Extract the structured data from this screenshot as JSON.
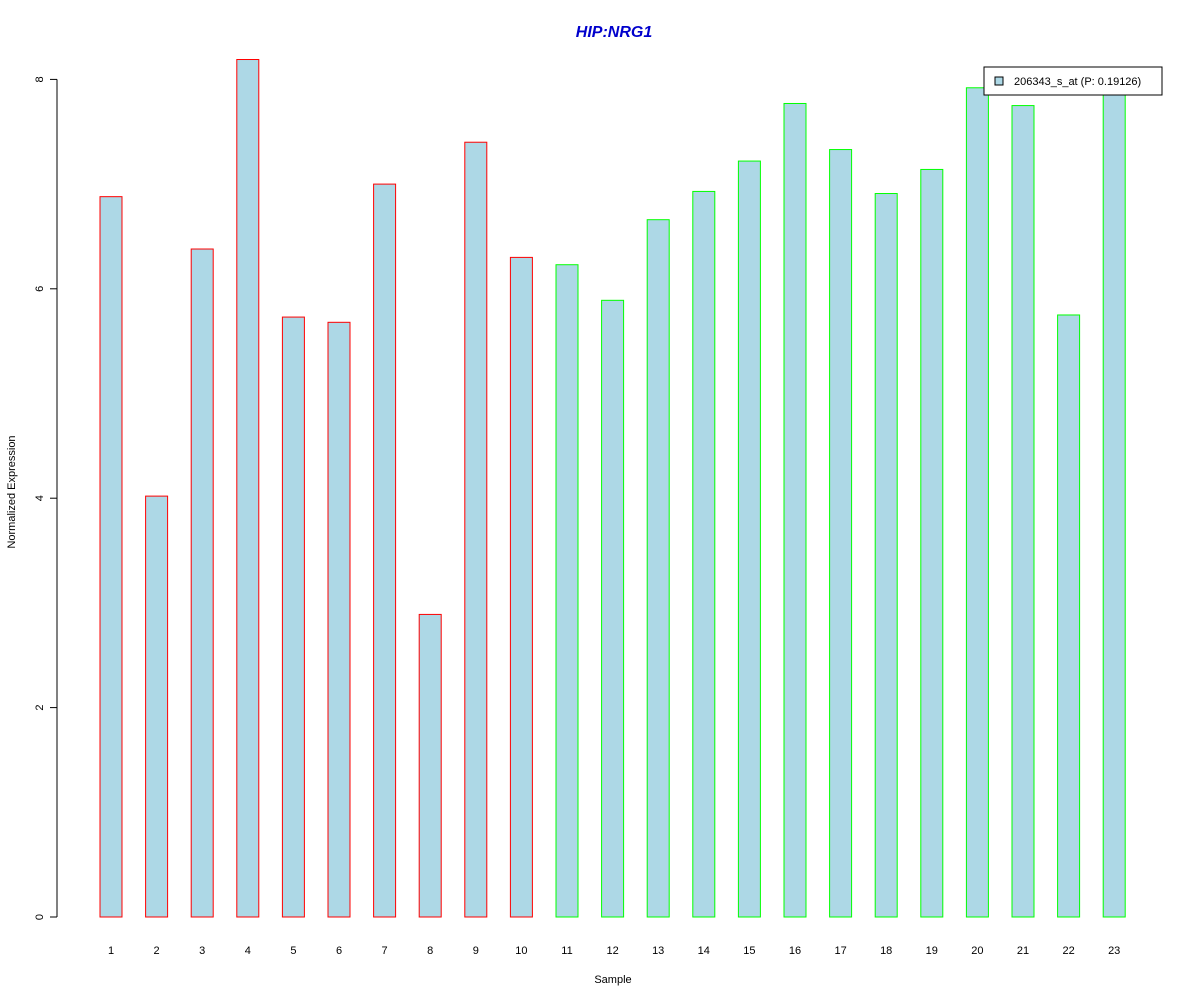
{
  "chart_data": {
    "type": "bar",
    "title": "HIP:NRG1",
    "xlabel": "Sample",
    "ylabel": "Normalized Expression",
    "categories": [
      "1",
      "2",
      "3",
      "4",
      "5",
      "6",
      "7",
      "8",
      "9",
      "10",
      "11",
      "12",
      "13",
      "14",
      "15",
      "16",
      "17",
      "18",
      "19",
      "20",
      "21",
      "22",
      "23"
    ],
    "series": [
      {
        "name": "206343_s_at (P: 0.19126)",
        "values": [
          6.88,
          4.02,
          6.38,
          8.19,
          5.73,
          5.68,
          7.0,
          2.89,
          7.4,
          6.3,
          6.23,
          5.89,
          6.66,
          6.93,
          7.22,
          7.77,
          7.33,
          6.91,
          7.14,
          7.92,
          7.75,
          5.75,
          7.9
        ]
      }
    ],
    "group_of_sample": [
      "A",
      "A",
      "A",
      "A",
      "A",
      "A",
      "A",
      "A",
      "A",
      "A",
      "B",
      "B",
      "B",
      "B",
      "B",
      "B",
      "B",
      "B",
      "B",
      "B",
      "B",
      "B",
      "B"
    ],
    "ylim": [
      0,
      8.2
    ],
    "yticks": [
      0,
      2,
      4,
      6,
      8
    ],
    "grid": false,
    "legend_position": "top-right",
    "colors": {
      "bar_fill": "#ADD8E6",
      "group_A_border": "#FF0000",
      "group_B_border": "#00FF00",
      "title": "#0000CC",
      "axis": "#000000"
    }
  }
}
